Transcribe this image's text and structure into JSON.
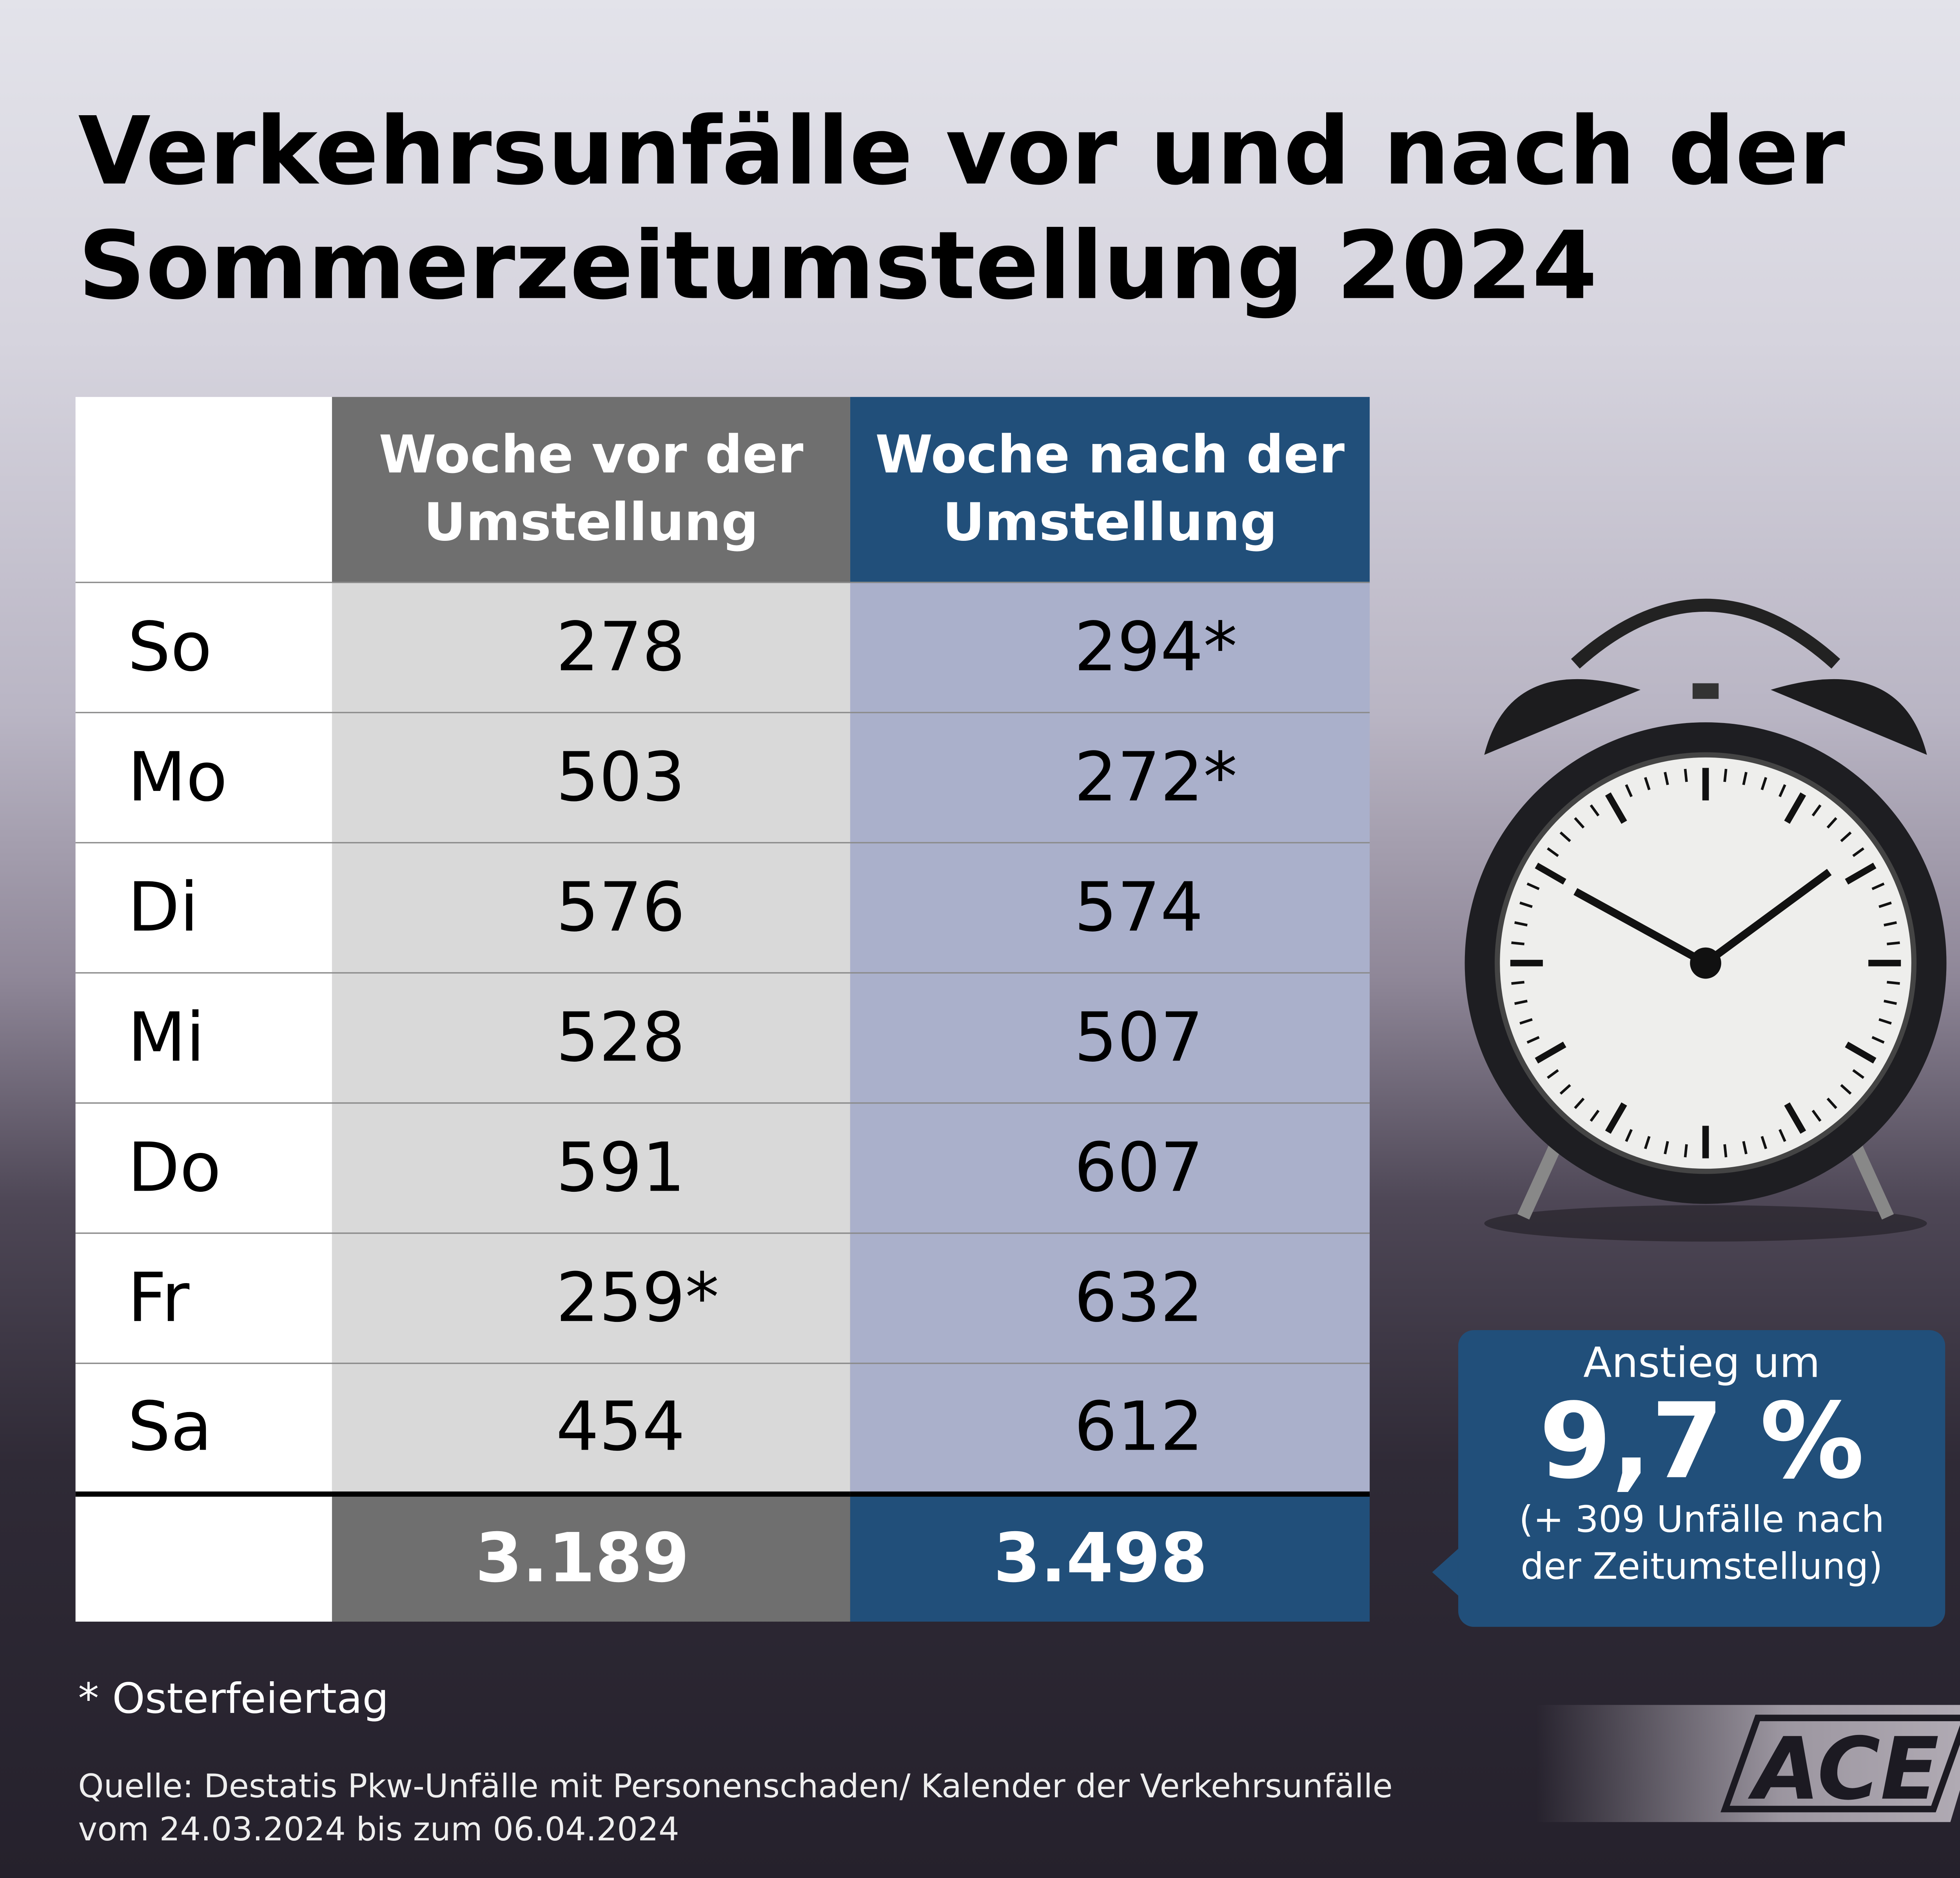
{
  "title": {
    "line1": "Verkehrsunfälle vor und nach der",
    "line2": "Sommerzeitumstellung 2024"
  },
  "table": {
    "headers": [
      {
        "line1": "Woche vor der",
        "line2": "Umstellung"
      },
      {
        "line1": "Woche nach der",
        "line2": "Umstellung"
      }
    ],
    "rows": [
      {
        "day": "So",
        "before": "278",
        "after": "294*"
      },
      {
        "day": "Mo",
        "before": "503",
        "after": "272*"
      },
      {
        "day": "Di",
        "before": "576",
        "after": "574"
      },
      {
        "day": "Mi",
        "before": "528",
        "after": "507"
      },
      {
        "day": "Do",
        "before": "591",
        "after": "607"
      },
      {
        "day": "Fr",
        "before": "259*",
        "after": "632"
      },
      {
        "day": "Sa",
        "before": "454",
        "after": "612"
      }
    ],
    "totals": {
      "before": "3.189",
      "after": "3.498"
    }
  },
  "callout": {
    "label": "Anstieg um",
    "value": "9,7 %",
    "detail1": "(+ 309 Unfälle nach",
    "detail2": "der Zeitumstellung)"
  },
  "footnote": "* Osterfeiertag",
  "source": {
    "line1": "Quelle: Destatis Pkw-Unfälle mit Personenschaden/ Kalender der Verkehrsunfälle",
    "line2": "vom 24.03.2024 bis zum 06.04.2024"
  },
  "logo": {
    "text": "ACE"
  },
  "colors": {
    "gray_header": "#6f6f6f",
    "blue_header": "#214f7a",
    "gray_cell": "#d9d9d9",
    "blue_cell": "#aab0cb"
  },
  "icons": {
    "clock": "alarm-clock-icon"
  }
}
